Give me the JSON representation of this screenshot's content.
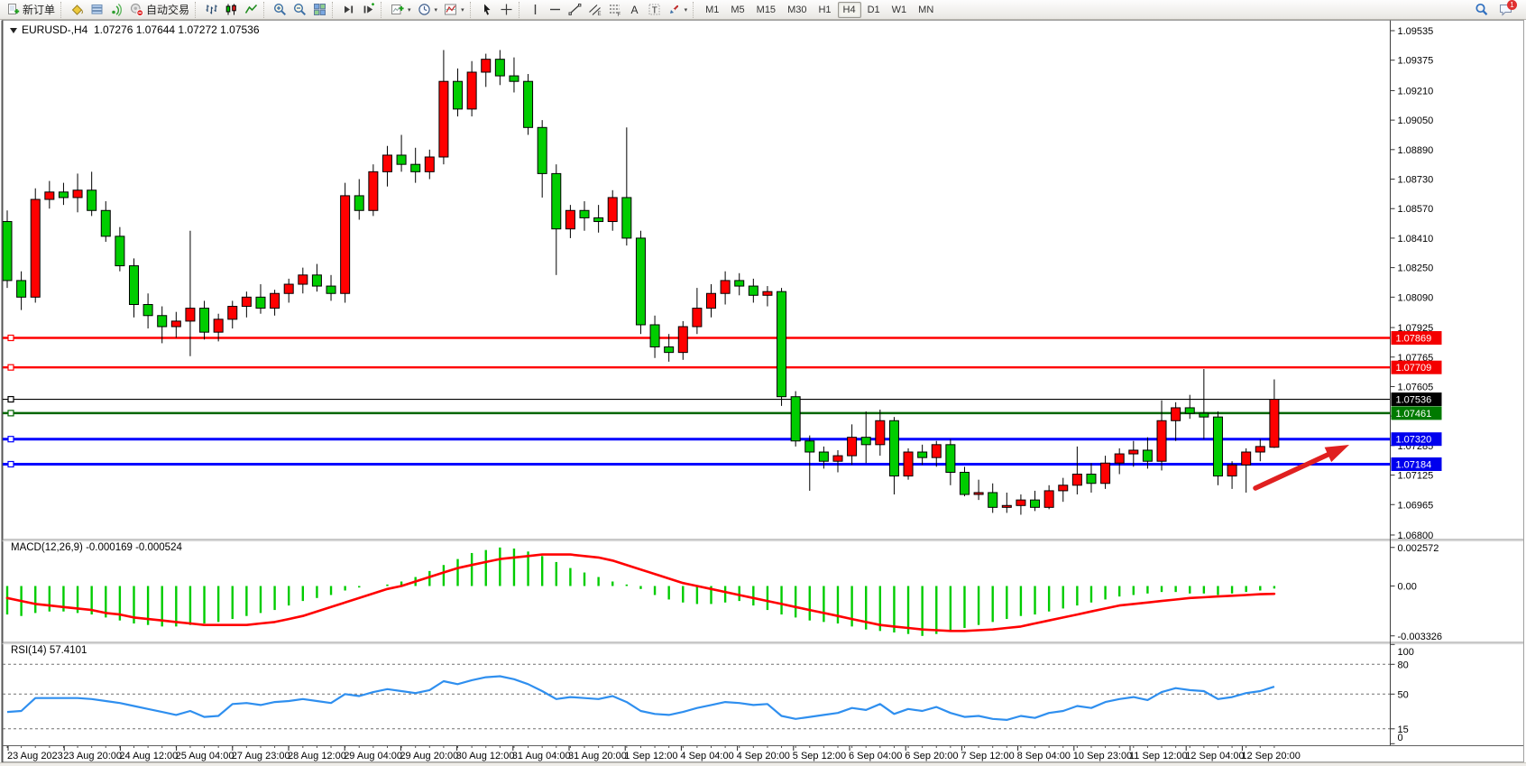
{
  "toolbar": {
    "groups": [
      [
        {
          "name": "new-order",
          "icon": "doc-plus",
          "label": "新订单"
        }
      ],
      [
        {
          "name": "styler",
          "icon": "bucket"
        },
        {
          "name": "profiles",
          "icon": "profiles"
        },
        {
          "name": "signals",
          "icon": "signal"
        },
        {
          "name": "auto-trading",
          "icon": "autotrade",
          "label": "自动交易"
        }
      ],
      [
        {
          "name": "bar-chart",
          "icon": "chart-bars"
        },
        {
          "name": "candlestick-chart",
          "icon": "chart-candles"
        },
        {
          "name": "line-chart",
          "icon": "chart-line"
        }
      ],
      [
        {
          "name": "zoom-in",
          "icon": "zoom-in"
        },
        {
          "name": "zoom-out",
          "icon": "zoom-out"
        },
        {
          "name": "tile-windows",
          "icon": "tile"
        }
      ],
      [
        {
          "name": "scroll-to-end",
          "icon": "shift-end"
        },
        {
          "name": "chart-shift",
          "icon": "shift-step"
        }
      ],
      [
        {
          "name": "new-chart",
          "icon": "add-chart",
          "caret": true
        },
        {
          "name": "period-selector",
          "icon": "clock",
          "caret": true
        },
        {
          "name": "indicators-menu",
          "icon": "indicators",
          "caret": true
        }
      ],
      [
        {
          "name": "cursor",
          "icon": "cursor"
        },
        {
          "name": "crosshair",
          "icon": "crosshair"
        }
      ],
      [
        {
          "name": "vertical-line-tool",
          "icon": "vline"
        },
        {
          "name": "horizontal-line-tool",
          "icon": "hline"
        },
        {
          "name": "trendline-tool",
          "icon": "trendline"
        },
        {
          "name": "equidistant-channel-tool",
          "icon": "channel"
        },
        {
          "name": "fibonacci-tool",
          "icon": "fibo"
        },
        {
          "name": "text-tool",
          "icon": "text-a"
        },
        {
          "name": "text-label-tool",
          "icon": "text-t"
        },
        {
          "name": "arrows-tool",
          "icon": "arrows-tool",
          "caret": true
        }
      ]
    ],
    "timeframes": {
      "items": [
        "M1",
        "M5",
        "M15",
        "M30",
        "H1",
        "H4",
        "D1",
        "W1",
        "MN"
      ],
      "active": "H4"
    },
    "right": {
      "search_icon": "search",
      "chat_icon": "chat",
      "chat_badge": "1"
    }
  },
  "chart": {
    "title_text": "EURUSD-,H4  1.07276 1.07644 1.07272 1.07536",
    "symbol": "EURUSD-",
    "timeframe": "H4"
  },
  "chart_data": {
    "type": "candlestick",
    "symbol": "EURUSD-",
    "timeframe": "H4",
    "current_bar": {
      "open": 1.07276,
      "high": 1.07644,
      "low": 1.07272,
      "close": 1.07536
    },
    "colors": {
      "up": "#ff0000",
      "down": "#00cd00",
      "wick": "#000000",
      "macd_hist": "#00cc00",
      "macd_signal": "#ff0000",
      "rsi_line": "#2f8fef",
      "arrow": "#e02020"
    },
    "price_axis_ticks": [
      "1.09535",
      "1.09375",
      "1.09210",
      "1.09050",
      "1.08890",
      "1.08730",
      "1.08570",
      "1.08410",
      "1.08250",
      "1.08090",
      "1.07925",
      "1.07765",
      "1.07605",
      "1.07445",
      "1.07285",
      "1.07125",
      "1.06965",
      "1.06800"
    ],
    "hlines": [
      {
        "price": 1.07869,
        "label": "1.07869",
        "color": "#ff0000",
        "bg": "#f40000",
        "w": 2.4
      },
      {
        "price": 1.07709,
        "label": "1.07709",
        "color": "#ff0000",
        "bg": "#f40000",
        "w": 2.4
      },
      {
        "price": 1.07536,
        "label": "1.07536",
        "color": "#000000",
        "bg": "#000000",
        "w": 1.2
      },
      {
        "price": 1.07461,
        "label": "1.07461",
        "color": "#006600",
        "bg": "#007a00",
        "w": 2.4
      },
      {
        "price": 1.0732,
        "label": "1.07320",
        "color": "#0000ff",
        "bg": "#0000ee",
        "w": 3
      },
      {
        "price": 1.07184,
        "label": "1.07184",
        "color": "#0000ff",
        "bg": "#0000ee",
        "w": 3
      }
    ],
    "x_labels": [
      "23 Aug 2023",
      "23 Aug 20:00",
      "24 Aug 12:00",
      "25 Aug 04:00",
      "27 Aug 23:00",
      "28 Aug 12:00",
      "29 Aug 04:00",
      "29 Aug 20:00",
      "30 Aug 12:00",
      "31 Aug 04:00",
      "31 Aug 20:00",
      "1 Sep 12:00",
      "4 Sep 04:00",
      "4 Sep 20:00",
      "5 Sep 12:00",
      "6 Sep 04:00",
      "6 Sep 20:00",
      "7 Sep 12:00",
      "8 Sep 04:00",
      "10 Sep 23:00",
      "11 Sep 12:00",
      "12 Sep 04:00",
      "12 Sep 20:00"
    ],
    "candles": [
      [
        1.085,
        1.0856,
        1.0814,
        1.0818
      ],
      [
        1.0818,
        1.0823,
        1.0802,
        1.0809
      ],
      [
        1.0809,
        1.0868,
        1.0806,
        1.0862
      ],
      [
        1.0862,
        1.0872,
        1.0857,
        1.0866
      ],
      [
        1.0866,
        1.0871,
        1.0859,
        1.0863
      ],
      [
        1.0863,
        1.0876,
        1.0855,
        1.0867
      ],
      [
        1.0867,
        1.0877,
        1.0853,
        1.0856
      ],
      [
        1.0856,
        1.0861,
        1.0839,
        1.0842
      ],
      [
        1.0842,
        1.0847,
        1.0823,
        1.0826
      ],
      [
        1.0826,
        1.083,
        1.0798,
        1.0805
      ],
      [
        1.0805,
        1.0811,
        1.0792,
        1.0799
      ],
      [
        1.0799,
        1.0804,
        1.0784,
        1.0793
      ],
      [
        1.0793,
        1.0801,
        1.0787,
        1.0796
      ],
      [
        1.0796,
        1.0845,
        1.0777,
        1.0803
      ],
      [
        1.0803,
        1.0807,
        1.0786,
        1.079
      ],
      [
        1.079,
        1.08,
        1.0785,
        1.0797
      ],
      [
        1.0797,
        1.0807,
        1.0792,
        1.0804
      ],
      [
        1.0804,
        1.0812,
        1.0798,
        1.0809
      ],
      [
        1.0809,
        1.0816,
        1.08,
        1.0803
      ],
      [
        1.0803,
        1.0813,
        1.0799,
        1.0811
      ],
      [
        1.0811,
        1.0819,
        1.0806,
        1.0816
      ],
      [
        1.0816,
        1.0825,
        1.0811,
        1.0821
      ],
      [
        1.0821,
        1.0827,
        1.0812,
        1.0815
      ],
      [
        1.0815,
        1.0821,
        1.0807,
        1.0811
      ],
      [
        1.0811,
        1.0871,
        1.0806,
        1.0864
      ],
      [
        1.0864,
        1.0873,
        1.0851,
        1.0856
      ],
      [
        1.0856,
        1.0881,
        1.0853,
        1.0877
      ],
      [
        1.0877,
        1.0891,
        1.0869,
        1.0886
      ],
      [
        1.0886,
        1.0897,
        1.0877,
        1.0881
      ],
      [
        1.0881,
        1.089,
        1.0871,
        1.0877
      ],
      [
        1.0877,
        1.0889,
        1.0873,
        1.0885
      ],
      [
        1.0885,
        1.0943,
        1.0881,
        1.0926
      ],
      [
        1.0926,
        1.0933,
        1.0907,
        1.0911
      ],
      [
        1.0911,
        1.0937,
        1.0907,
        1.0931
      ],
      [
        1.0931,
        1.0941,
        1.0923,
        1.0938
      ],
      [
        1.0938,
        1.0943,
        1.0924,
        1.0929
      ],
      [
        1.0929,
        1.0939,
        1.092,
        1.0926
      ],
      [
        1.0926,
        1.093,
        1.0897,
        1.0901
      ],
      [
        1.0901,
        1.0905,
        1.0863,
        1.0876
      ],
      [
        1.0876,
        1.0881,
        1.0821,
        1.0846
      ],
      [
        1.0846,
        1.0859,
        1.0841,
        1.0856
      ],
      [
        1.0856,
        1.0861,
        1.0845,
        1.0852
      ],
      [
        1.0852,
        1.0859,
        1.0844,
        1.085
      ],
      [
        1.085,
        1.0867,
        1.0845,
        1.0863
      ],
      [
        1.0863,
        1.0901,
        1.0837,
        1.0841
      ],
      [
        1.0841,
        1.0845,
        1.0789,
        1.0794
      ],
      [
        1.0794,
        1.0799,
        1.0776,
        1.0782
      ],
      [
        1.0782,
        1.0789,
        1.0774,
        1.0779
      ],
      [
        1.0779,
        1.0796,
        1.0775,
        1.0793
      ],
      [
        1.0793,
        1.0814,
        1.0789,
        1.0803
      ],
      [
        1.0803,
        1.0816,
        1.0798,
        1.0811
      ],
      [
        1.0811,
        1.0823,
        1.0805,
        1.0818
      ],
      [
        1.0818,
        1.0822,
        1.081,
        1.0815
      ],
      [
        1.0815,
        1.0819,
        1.0806,
        1.081
      ],
      [
        1.081,
        1.0815,
        1.0804,
        1.0812
      ],
      [
        1.0812,
        1.0814,
        1.075,
        1.0755
      ],
      [
        1.0755,
        1.0758,
        1.0728,
        1.0731
      ],
      [
        1.0731,
        1.0734,
        1.0704,
        1.0725
      ],
      [
        1.0725,
        1.0728,
        1.0716,
        1.072
      ],
      [
        1.072,
        1.0726,
        1.0714,
        1.0723
      ],
      [
        1.0723,
        1.074,
        1.0718,
        1.0733
      ],
      [
        1.0733,
        1.0747,
        1.0719,
        1.0729
      ],
      [
        1.0729,
        1.0748,
        1.0723,
        1.0742
      ],
      [
        1.0742,
        1.0744,
        1.0702,
        1.0712
      ],
      [
        1.0712,
        1.0727,
        1.071,
        1.0725
      ],
      [
        1.0725,
        1.0729,
        1.0718,
        1.0722
      ],
      [
        1.0722,
        1.0731,
        1.0717,
        1.0729
      ],
      [
        1.0729,
        1.0732,
        1.0707,
        1.0714
      ],
      [
        1.0714,
        1.0717,
        1.0701,
        1.0702
      ],
      [
        1.0702,
        1.071,
        1.0699,
        1.0703
      ],
      [
        1.0703,
        1.0708,
        1.0692,
        1.0695
      ],
      [
        1.0695,
        1.0703,
        1.0692,
        1.0696
      ],
      [
        1.0696,
        1.0702,
        1.0691,
        1.0699
      ],
      [
        1.0699,
        1.0704,
        1.0693,
        1.0695
      ],
      [
        1.0695,
        1.0707,
        1.0694,
        1.0704
      ],
      [
        1.0704,
        1.0711,
        1.0698,
        1.0707
      ],
      [
        1.0707,
        1.0728,
        1.0702,
        1.0713
      ],
      [
        1.0713,
        1.0719,
        1.0703,
        1.0708
      ],
      [
        1.0708,
        1.0723,
        1.0705,
        1.0719
      ],
      [
        1.0719,
        1.0727,
        1.0713,
        1.0724
      ],
      [
        1.0724,
        1.0731,
        1.0717,
        1.0726
      ],
      [
        1.0726,
        1.0733,
        1.0716,
        1.072
      ],
      [
        1.072,
        1.0753,
        1.0715,
        1.0742
      ],
      [
        1.0742,
        1.0752,
        1.0731,
        1.0749
      ],
      [
        1.0749,
        1.0756,
        1.0743,
        1.0746
      ],
      [
        1.0746,
        1.077,
        1.0732,
        1.0744
      ],
      [
        1.0744,
        1.0747,
        1.0707,
        1.0712
      ],
      [
        1.0712,
        1.072,
        1.0705,
        1.0718
      ],
      [
        1.0718,
        1.0727,
        1.0703,
        1.0725
      ],
      [
        1.0725,
        1.0732,
        1.072,
        1.0728
      ],
      [
        1.07276,
        1.07644,
        1.07272,
        1.07536
      ]
    ],
    "indicators": {
      "macd": {
        "display": "MACD(12,26,9) -0.000169 -0.000524",
        "name": "MACD(12,26,9)",
        "main_value": "-0.000169",
        "signal_value": "-0.000524",
        "axis": [
          {
            "label": "0.002572",
            "value": 0.002572
          },
          {
            "label": "0.00",
            "value": 0
          },
          {
            "label": "-0.003326",
            "value": -0.003326
          }
        ],
        "histogram": [
          -0.0019,
          -0.002,
          -0.0018,
          -0.0017,
          -0.0017,
          -0.0018,
          -0.0019,
          -0.0021,
          -0.0023,
          -0.0025,
          -0.0026,
          -0.0027,
          -0.0027,
          -0.0026,
          -0.0025,
          -0.0024,
          -0.0022,
          -0.002,
          -0.0018,
          -0.0016,
          -0.0013,
          -0.001,
          -0.0008,
          -0.0006,
          -0.0003,
          -0.0001,
          0.0,
          0.0001,
          0.0003,
          0.0006,
          0.001,
          0.0014,
          0.0018,
          0.0022,
          0.0024,
          0.00257,
          0.0025,
          0.0023,
          0.002,
          0.0016,
          0.0012,
          0.0009,
          0.0006,
          0.0003,
          0.0001,
          -0.0002,
          -0.0006,
          -0.0009,
          -0.0011,
          -0.0012,
          -0.0012,
          -0.0011,
          -0.001,
          -0.0013,
          -0.0016,
          -0.0019,
          -0.0021,
          -0.0023,
          -0.0024,
          -0.0025,
          -0.0027,
          -0.0029,
          -0.003,
          -0.0031,
          -0.0032,
          -0.00333,
          -0.0032,
          -0.003,
          -0.0028,
          -0.0026,
          -0.0024,
          -0.0022,
          -0.002,
          -0.0019,
          -0.0017,
          -0.0015,
          -0.0013,
          -0.0011,
          -0.0009,
          -0.0007,
          -0.0006,
          -0.0005,
          -0.0004,
          -0.0004,
          -0.0005,
          -0.0005,
          -0.0006,
          -0.0005,
          -0.0004,
          -0.0003,
          -0.000169
        ],
        "signal": [
          -0.0008,
          -0.001,
          -0.0012,
          -0.0013,
          -0.0014,
          -0.0015,
          -0.0016,
          -0.0018,
          -0.0019,
          -0.0021,
          -0.0022,
          -0.0023,
          -0.0024,
          -0.0025,
          -0.0026,
          -0.0026,
          -0.0026,
          -0.0026,
          -0.0025,
          -0.0024,
          -0.0022,
          -0.002,
          -0.0017,
          -0.0014,
          -0.0011,
          -0.0008,
          -0.0005,
          -0.0002,
          0.0,
          0.0003,
          0.0006,
          0.0009,
          0.0012,
          0.0014,
          0.0016,
          0.0018,
          0.0019,
          0.002,
          0.0021,
          0.0021,
          0.0021,
          0.002,
          0.0019,
          0.0017,
          0.0014,
          0.0011,
          0.0008,
          0.0005,
          0.0002,
          0.0,
          -0.0002,
          -0.0004,
          -0.0006,
          -0.0008,
          -0.001,
          -0.0012,
          -0.0014,
          -0.0016,
          -0.0018,
          -0.002,
          -0.0022,
          -0.0024,
          -0.0026,
          -0.0027,
          -0.0028,
          -0.0029,
          -0.00295,
          -0.003,
          -0.003,
          -0.00295,
          -0.0029,
          -0.0028,
          -0.0027,
          -0.0025,
          -0.0023,
          -0.0021,
          -0.0019,
          -0.0017,
          -0.0015,
          -0.0013,
          -0.0012,
          -0.0011,
          -0.001,
          -0.0009,
          -0.0008,
          -0.00075,
          -0.0007,
          -0.00065,
          -0.0006,
          -0.00055,
          -0.000524
        ]
      },
      "rsi": {
        "display": "RSI(14) 57.4101",
        "name": "RSI(14)",
        "value": "57.4101",
        "levels": [
          80,
          50,
          15
        ],
        "axis": [
          {
            "label": "100",
            "value": 100
          },
          {
            "label": "80",
            "value": 80
          },
          {
            "label": "50",
            "value": 50
          },
          {
            "label": "15",
            "value": 15
          },
          {
            "label": "0",
            "value": 0
          }
        ],
        "values": [
          32,
          33,
          46,
          46,
          46,
          46,
          45,
          43,
          41,
          38,
          35,
          32,
          29,
          33,
          27,
          28,
          40,
          41,
          39,
          42,
          43,
          45,
          43,
          41,
          50,
          48,
          52,
          55,
          53,
          51,
          54,
          63,
          60,
          64,
          67,
          68,
          65,
          60,
          53,
          45,
          47,
          46,
          45,
          48,
          42,
          33,
          30,
          29,
          32,
          36,
          39,
          42,
          41,
          39,
          40,
          28,
          25,
          27,
          29,
          31,
          36,
          34,
          40,
          30,
          35,
          33,
          37,
          31,
          27,
          28,
          25,
          24,
          28,
          26,
          31,
          33,
          38,
          36,
          42,
          45,
          47,
          44,
          52,
          56,
          54,
          53,
          45,
          47,
          51,
          53,
          57.41
        ]
      }
    },
    "annotations": [
      {
        "type": "arrow",
        "color": "#e02020",
        "tail": [
          1392,
          541
        ],
        "head": [
          1496,
          493
        ]
      }
    ]
  }
}
